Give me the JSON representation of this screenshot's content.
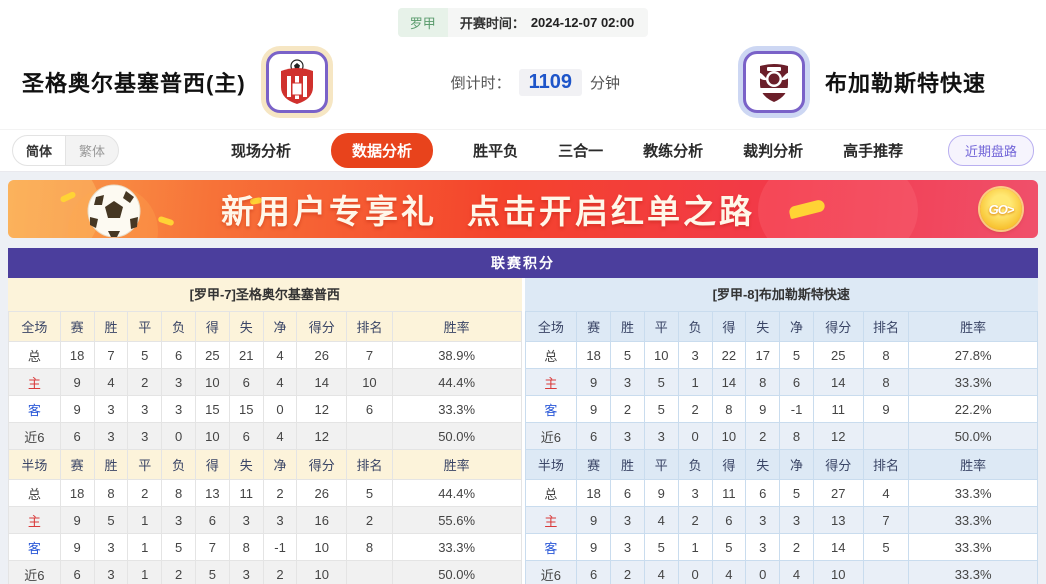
{
  "header": {
    "league_badge": "罗甲",
    "kickoff_label": "开赛时间：",
    "kickoff_time": "2024-12-07 02:00",
    "home_team": "圣格奥尔基塞普西(主)",
    "away_team": "布加勒斯特快速",
    "countdown_label": "倒计时：",
    "countdown_value": "1109",
    "countdown_unit": "分钟"
  },
  "nav": {
    "lang_simplified": "简体",
    "lang_traditional": "繁体",
    "tabs": [
      "现场分析",
      "数据分析",
      "胜平负",
      "三合一",
      "教练分析",
      "裁判分析",
      "高手推荐"
    ],
    "active_tab": "数据分析",
    "recent_button": "近期盘路"
  },
  "banner": {
    "text_part1": "新用户专享礼",
    "text_part2": "点击开启红单之路",
    "go_label": "GO>"
  },
  "table": {
    "title": "联赛积分",
    "columns_full": [
      "全场",
      "赛",
      "胜",
      "平",
      "负",
      "得",
      "失",
      "净",
      "得分",
      "排名",
      "胜率"
    ],
    "columns_half": [
      "半场",
      "赛",
      "胜",
      "平",
      "负",
      "得",
      "失",
      "净",
      "得分",
      "排名",
      "胜率"
    ],
    "home": {
      "subtitle": "[罗甲-7]圣格奥尔基塞普西",
      "full": [
        [
          "总",
          "18",
          "7",
          "5",
          "6",
          "25",
          "21",
          "4",
          "26",
          "7",
          "38.9%"
        ],
        [
          "主",
          "9",
          "4",
          "2",
          "3",
          "10",
          "6",
          "4",
          "14",
          "10",
          "44.4%"
        ],
        [
          "客",
          "9",
          "3",
          "3",
          "3",
          "15",
          "15",
          "0",
          "12",
          "6",
          "33.3%"
        ],
        [
          "近6",
          "6",
          "3",
          "3",
          "0",
          "10",
          "6",
          "4",
          "12",
          "",
          "50.0%"
        ]
      ],
      "half": [
        [
          "总",
          "18",
          "8",
          "2",
          "8",
          "13",
          "11",
          "2",
          "26",
          "5",
          "44.4%"
        ],
        [
          "主",
          "9",
          "5",
          "1",
          "3",
          "6",
          "3",
          "3",
          "16",
          "2",
          "55.6%"
        ],
        [
          "客",
          "9",
          "3",
          "1",
          "5",
          "7",
          "8",
          "-1",
          "10",
          "8",
          "33.3%"
        ],
        [
          "近6",
          "6",
          "3",
          "1",
          "2",
          "5",
          "3",
          "2",
          "10",
          "",
          "50.0%"
        ]
      ]
    },
    "away": {
      "subtitle": "[罗甲-8]布加勒斯特快速",
      "full": [
        [
          "总",
          "18",
          "5",
          "10",
          "3",
          "22",
          "17",
          "5",
          "25",
          "8",
          "27.8%"
        ],
        [
          "主",
          "9",
          "3",
          "5",
          "1",
          "14",
          "8",
          "6",
          "14",
          "8",
          "33.3%"
        ],
        [
          "客",
          "9",
          "2",
          "5",
          "2",
          "8",
          "9",
          "-1",
          "11",
          "9",
          "22.2%"
        ],
        [
          "近6",
          "6",
          "3",
          "3",
          "0",
          "10",
          "2",
          "8",
          "12",
          "",
          "50.0%"
        ]
      ],
      "half": [
        [
          "总",
          "18",
          "6",
          "9",
          "3",
          "11",
          "6",
          "5",
          "27",
          "4",
          "33.3%"
        ],
        [
          "主",
          "9",
          "3",
          "4",
          "2",
          "6",
          "3",
          "3",
          "13",
          "7",
          "33.3%"
        ],
        [
          "客",
          "9",
          "3",
          "5",
          "1",
          "5",
          "3",
          "2",
          "14",
          "5",
          "33.3%"
        ],
        [
          "近6",
          "6",
          "2",
          "4",
          "0",
          "4",
          "0",
          "4",
          "10",
          "",
          "33.3%"
        ]
      ]
    }
  },
  "colors": {
    "purple": "#4b3e9d",
    "tab_active": "#e8431c",
    "league_green": "#5b9c6e",
    "countdown_blue": "#1e55c9",
    "recent_purple": "#7265d8",
    "home_red": "#d93a3a",
    "away_blue": "#2b59d8",
    "banner_from": "#f9a24d",
    "banner_mid": "#f4432c",
    "banner_to": "#f0506b",
    "left_head": "#fcf3da",
    "right_head": "#dde9f5",
    "left_stripe": "#f1f1f1",
    "right_stripe": "#e9eff7"
  }
}
